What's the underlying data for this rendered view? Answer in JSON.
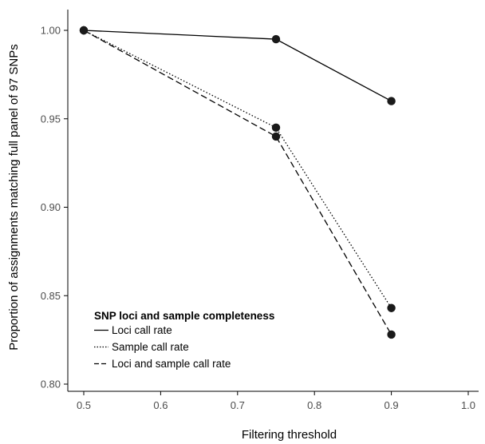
{
  "chart_data": {
    "type": "line",
    "xlabel": "Filtering threshold",
    "ylabel": "Proportion of assignments matching full panel of 97 SNPs",
    "xlim": [
      0.5,
      1.0
    ],
    "ylim": [
      0.8,
      1.0
    ],
    "xticks": [
      "0.5",
      "0.6",
      "0.7",
      "0.8",
      "0.9",
      "1.0"
    ],
    "yticks": [
      "0.80",
      "0.85",
      "0.90",
      "0.95",
      "1.00"
    ],
    "x": [
      0.5,
      0.75,
      0.9
    ],
    "series": [
      {
        "name": "Loci call rate",
        "values": [
          1.0,
          0.995,
          0.96
        ],
        "linestyle": "solid"
      },
      {
        "name": "Sample call rate",
        "values": [
          1.0,
          0.945,
          0.843
        ],
        "linestyle": "dotted"
      },
      {
        "name": "Loci and sample call rate",
        "values": [
          1.0,
          0.94,
          0.828
        ],
        "linestyle": "dashed"
      }
    ],
    "legend": {
      "title": "SNP loci and sample completeness",
      "placement": "bottom-left"
    },
    "grid": false,
    "marker_color": "#1a1a1a",
    "line_color": "#000000"
  }
}
